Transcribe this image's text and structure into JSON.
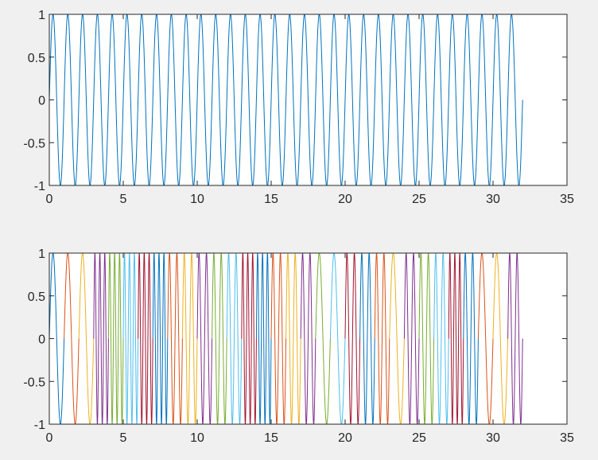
{
  "chart_data": [
    {
      "type": "line",
      "title": "",
      "xlabel": "",
      "ylabel": "",
      "xlim": [
        0,
        35
      ],
      "ylim": [
        -1,
        1
      ],
      "xticks": [
        "0",
        "5",
        "10",
        "15",
        "20",
        "25",
        "30",
        "35"
      ],
      "yticks": [
        "1",
        "0.5",
        "0",
        "-0.5",
        "-1"
      ],
      "grid": false,
      "series": [
        {
          "x_range": [
            0,
            32
          ],
          "function": "sin(2*pi*t)",
          "frequency_hz": 1,
          "color": "#0072BD"
        }
      ]
    },
    {
      "type": "line",
      "title": "",
      "xlabel": "",
      "ylabel": "",
      "xlim": [
        0,
        35
      ],
      "ylim": [
        -1,
        1
      ],
      "xticks": [
        "0",
        "5",
        "10",
        "15",
        "20",
        "25",
        "30",
        "35"
      ],
      "yticks": [
        "1",
        "0.5",
        "0",
        "-0.5",
        "-1"
      ],
      "grid": false,
      "function": "sin(2*pi*f*t)",
      "series": [
        {
          "x_range": [
            0,
            1
          ],
          "frequency_hz": 1,
          "color": "#0072BD"
        },
        {
          "x_range": [
            1,
            2
          ],
          "frequency_hz": 1,
          "color": "#D95319"
        },
        {
          "x_range": [
            2,
            3
          ],
          "frequency_hz": 1,
          "color": "#EDB120"
        },
        {
          "x_range": [
            3,
            4
          ],
          "frequency_hz": 3,
          "color": "#7E2F8E"
        },
        {
          "x_range": [
            4,
            5
          ],
          "frequency_hz": 3,
          "color": "#77AC30"
        },
        {
          "x_range": [
            5,
            6
          ],
          "frequency_hz": 3,
          "color": "#4DBEEE"
        },
        {
          "x_range": [
            6,
            7
          ],
          "frequency_hz": 3,
          "color": "#A2142F"
        },
        {
          "x_range": [
            7,
            8
          ],
          "frequency_hz": 3,
          "color": "#0072BD"
        },
        {
          "x_range": [
            8,
            9
          ],
          "frequency_hz": 2,
          "color": "#D95319"
        },
        {
          "x_range": [
            9,
            10
          ],
          "frequency_hz": 2,
          "color": "#EDB120"
        },
        {
          "x_range": [
            10,
            11
          ],
          "frequency_hz": 2,
          "color": "#7E2F8E"
        },
        {
          "x_range": [
            11,
            12
          ],
          "frequency_hz": 2,
          "color": "#77AC30"
        },
        {
          "x_range": [
            12,
            13
          ],
          "frequency_hz": 2,
          "color": "#4DBEEE"
        },
        {
          "x_range": [
            13,
            14
          ],
          "frequency_hz": 3,
          "color": "#A2142F"
        },
        {
          "x_range": [
            14,
            15
          ],
          "frequency_hz": 3,
          "color": "#0072BD"
        },
        {
          "x_range": [
            15,
            16
          ],
          "frequency_hz": 2,
          "color": "#D95319"
        },
        {
          "x_range": [
            16,
            17
          ],
          "frequency_hz": 2,
          "color": "#EDB120"
        },
        {
          "x_range": [
            17,
            18
          ],
          "frequency_hz": 2,
          "color": "#7E2F8E"
        },
        {
          "x_range": [
            18,
            19
          ],
          "frequency_hz": 1,
          "color": "#77AC30"
        },
        {
          "x_range": [
            19,
            20
          ],
          "frequency_hz": 1,
          "color": "#4DBEEE"
        },
        {
          "x_range": [
            20,
            21
          ],
          "frequency_hz": 2,
          "color": "#A2142F"
        },
        {
          "x_range": [
            21,
            22
          ],
          "frequency_hz": 2,
          "color": "#0072BD"
        },
        {
          "x_range": [
            22,
            23
          ],
          "frequency_hz": 2,
          "color": "#D95319"
        },
        {
          "x_range": [
            23,
            24
          ],
          "frequency_hz": 1,
          "color": "#EDB120"
        },
        {
          "x_range": [
            24,
            25
          ],
          "frequency_hz": 2,
          "color": "#7E2F8E"
        },
        {
          "x_range": [
            25,
            26
          ],
          "frequency_hz": 2,
          "color": "#77AC30"
        },
        {
          "x_range": [
            26,
            27
          ],
          "frequency_hz": 2,
          "color": "#4DBEEE"
        },
        {
          "x_range": [
            27,
            28
          ],
          "frequency_hz": 3,
          "color": "#A2142F"
        },
        {
          "x_range": [
            28,
            29
          ],
          "frequency_hz": 2,
          "color": "#0072BD"
        },
        {
          "x_range": [
            29,
            30
          ],
          "frequency_hz": 1,
          "color": "#D95319"
        },
        {
          "x_range": [
            30,
            31
          ],
          "frequency_hz": 1,
          "color": "#EDB120"
        },
        {
          "x_range": [
            31,
            32
          ],
          "frequency_hz": 2,
          "color": "#7E2F8E"
        }
      ]
    }
  ]
}
